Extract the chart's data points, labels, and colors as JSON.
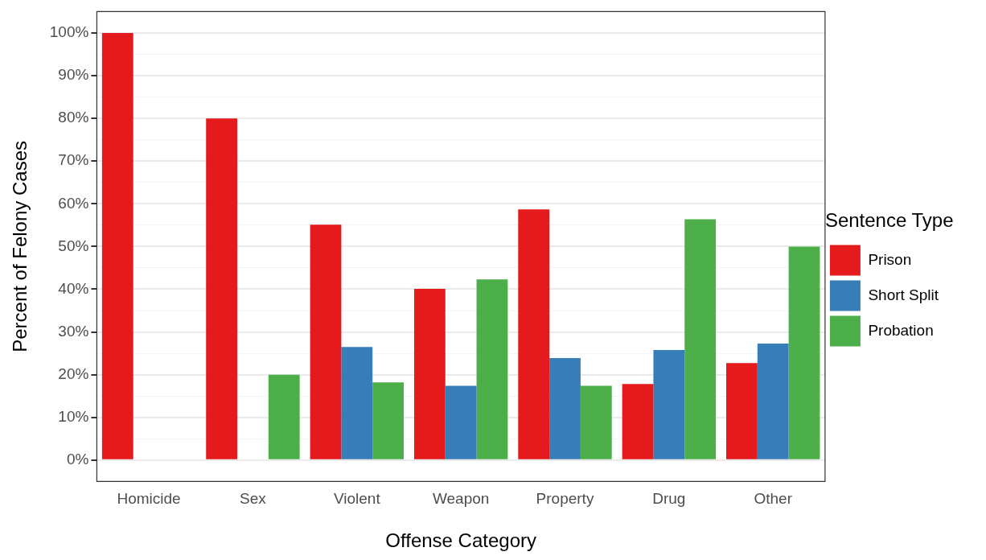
{
  "chart_data": {
    "type": "bar",
    "xlabel": "Offense Category",
    "ylabel": "Percent of Felony Cases",
    "legend_title": "Sentence Type",
    "legend": "right",
    "categories": [
      "Homicide",
      "Sex",
      "Violent",
      "Weapon",
      "Property",
      "Drug",
      "Other"
    ],
    "series": [
      {
        "name": "Prison",
        "color": "#e41a1c",
        "values": [
          100,
          80,
          55.1,
          40.1,
          58.7,
          17.8,
          22.7
        ]
      },
      {
        "name": "Short Split",
        "color": "#377eb8",
        "values": [
          0,
          0,
          26.5,
          17.4,
          23.9,
          25.8,
          27.3
        ]
      },
      {
        "name": "Probation",
        "color": "#4daf4a",
        "values": [
          0,
          20,
          18.2,
          42.3,
          17.4,
          56.4,
          50
        ]
      }
    ],
    "ylim": [
      -5,
      105
    ],
    "yticks": [
      {
        "value": 0,
        "label": "0%"
      },
      {
        "value": 5,
        "label": null
      },
      {
        "value": 10,
        "label": "10%"
      },
      {
        "value": 15,
        "label": null
      },
      {
        "value": 20,
        "label": "20%"
      },
      {
        "value": 25,
        "label": null
      },
      {
        "value": 30,
        "label": "30%"
      },
      {
        "value": 35,
        "label": null
      },
      {
        "value": 40,
        "label": "40%"
      },
      {
        "value": 45,
        "label": null
      },
      {
        "value": 50,
        "label": "50%"
      },
      {
        "value": 55,
        "label": null
      },
      {
        "value": 60,
        "label": "60%"
      },
      {
        "value": 65,
        "label": null
      },
      {
        "value": 70,
        "label": "70%"
      },
      {
        "value": 75,
        "label": null
      },
      {
        "value": 80,
        "label": "80%"
      },
      {
        "value": 85,
        "label": null
      },
      {
        "value": 90,
        "label": "90%"
      },
      {
        "value": 95,
        "label": null
      },
      {
        "value": 100,
        "label": "100%"
      }
    ],
    "grid": "y"
  }
}
